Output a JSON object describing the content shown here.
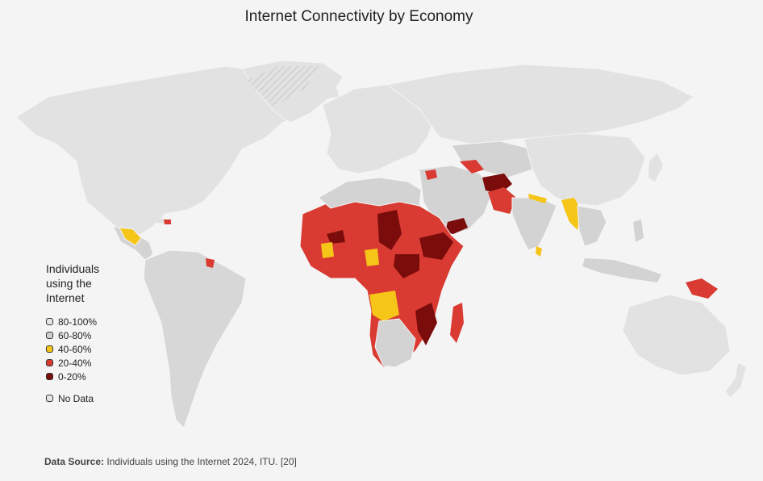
{
  "title": "Internet Connectivity by Economy",
  "legend": {
    "title": "Individuals using the Internet",
    "items": [
      {
        "label": "80-100%",
        "color": "#e6e6e6"
      },
      {
        "label": "60-80%",
        "color": "#cfcfcf"
      },
      {
        "label": "40-60%",
        "color": "#f5c518"
      },
      {
        "label": "20-40%",
        "color": "#d93a32"
      },
      {
        "label": "0-20%",
        "color": "#7a0c0c"
      }
    ],
    "no_data": {
      "label": "No Data",
      "color": "#e6e6e6"
    }
  },
  "source": {
    "prefix": "Data Source:",
    "text": "Individuals using the Internet 2024, ITU. [20]"
  }
}
